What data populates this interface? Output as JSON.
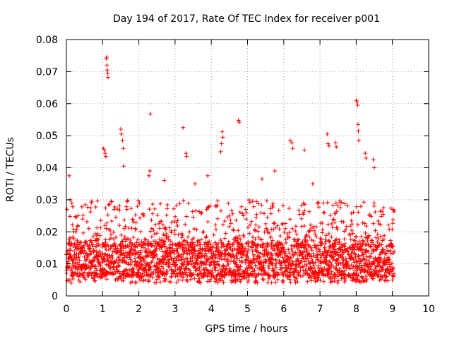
{
  "chart_data": {
    "type": "scatter",
    "title": "Day 194 of 2017, Rate Of TEC Index for receiver p001",
    "xlabel": "GPS time / hours",
    "ylabel": "ROTI / TECUs",
    "xlim": [
      0,
      10
    ],
    "ylim": [
      0,
      0.08
    ],
    "x_ticks": [
      0,
      1,
      2,
      3,
      4,
      5,
      6,
      7,
      8,
      9,
      10
    ],
    "y_ticks": [
      0,
      0.01,
      0.02,
      0.03,
      0.04,
      0.05,
      0.06,
      0.07,
      0.08
    ],
    "x_tick_labels": [
      "0",
      "1",
      "2",
      "3",
      "4",
      "5",
      "6",
      "7",
      "8",
      "9",
      "10"
    ],
    "y_tick_labels": [
      "0",
      "0.01",
      "0.02",
      "0.03",
      "0.04",
      "0.05",
      "0.06",
      "0.07",
      "0.08"
    ],
    "grid": true,
    "marker": "+",
    "color": "#ff0000",
    "series": [
      {
        "name": "ROTI",
        "band": {
          "x_start": 0.0,
          "x_end": 9.05,
          "x_step": 0.005,
          "typical_range": [
            0.006,
            0.016
          ],
          "upper_spread": [
            0.016,
            0.03
          ]
        },
        "points": [
          [
            0.02,
            0.0048
          ],
          [
            0.05,
            0.005
          ],
          [
            0.08,
            0.0375
          ],
          [
            0.1,
            0.03
          ],
          [
            0.15,
            0.029
          ],
          [
            1.02,
            0.046
          ],
          [
            1.05,
            0.0455
          ],
          [
            1.07,
            0.0445
          ],
          [
            1.09,
            0.0435
          ],
          [
            1.1,
            0.074
          ],
          [
            1.11,
            0.0745
          ],
          [
            1.12,
            0.072
          ],
          [
            1.13,
            0.0705
          ],
          [
            1.14,
            0.0695
          ],
          [
            1.15,
            0.0682
          ],
          [
            1.5,
            0.052
          ],
          [
            1.52,
            0.0505
          ],
          [
            1.55,
            0.0485
          ],
          [
            1.57,
            0.046
          ],
          [
            1.58,
            0.0405
          ],
          [
            2.32,
            0.0568
          ],
          [
            2.3,
            0.039
          ],
          [
            2.28,
            0.0375
          ],
          [
            3.22,
            0.0525
          ],
          [
            3.3,
            0.0445
          ],
          [
            3.32,
            0.0435
          ],
          [
            4.3,
            0.0512
          ],
          [
            4.32,
            0.0495
          ],
          [
            4.28,
            0.0475
          ],
          [
            4.26,
            0.045
          ],
          [
            4.75,
            0.0548
          ],
          [
            4.77,
            0.0542
          ],
          [
            6.18,
            0.0485
          ],
          [
            6.22,
            0.0478
          ],
          [
            6.25,
            0.046
          ],
          [
            6.57,
            0.0455
          ],
          [
            7.2,
            0.0505
          ],
          [
            7.22,
            0.0475
          ],
          [
            7.25,
            0.0468
          ],
          [
            7.43,
            0.0478
          ],
          [
            7.45,
            0.0465
          ],
          [
            8.0,
            0.061
          ],
          [
            8.02,
            0.0605
          ],
          [
            8.04,
            0.0595
          ],
          [
            8.05,
            0.0535
          ],
          [
            8.06,
            0.0515
          ],
          [
            8.07,
            0.0485
          ],
          [
            8.25,
            0.0445
          ],
          [
            8.27,
            0.043
          ],
          [
            8.47,
            0.0425
          ],
          [
            8.5,
            0.04
          ],
          [
            9.0,
            0.005
          ],
          [
            9.02,
            0.027
          ],
          [
            9.05,
            0.0265
          ],
          [
            3.55,
            0.035
          ],
          [
            3.9,
            0.0375
          ],
          [
            2.7,
            0.036
          ],
          [
            5.75,
            0.039
          ],
          [
            5.4,
            0.0365
          ],
          [
            6.8,
            0.035
          ]
        ]
      }
    ]
  }
}
